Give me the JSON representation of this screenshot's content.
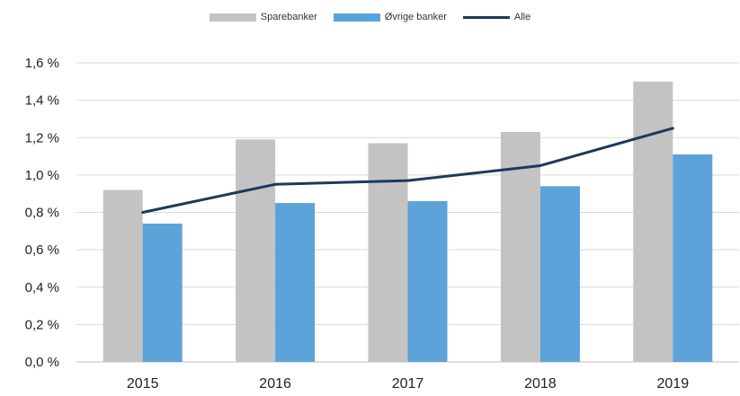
{
  "chart_data": {
    "type": "bar",
    "categories": [
      "2015",
      "2016",
      "2017",
      "2018",
      "2019"
    ],
    "series": [
      {
        "name": "Sparebanker",
        "kind": "bar",
        "color": "#c3c3c3",
        "values": [
          0.92,
          1.19,
          1.17,
          1.23,
          1.5
        ]
      },
      {
        "name": "Øvrige banker",
        "kind": "bar",
        "color": "#5ba3d9",
        "values": [
          0.74,
          0.85,
          0.86,
          0.94,
          1.11
        ]
      },
      {
        "name": "Alle",
        "kind": "line",
        "color": "#1b3a5a",
        "values": [
          0.8,
          0.95,
          0.97,
          1.05,
          1.25
        ]
      }
    ],
    "ylim": [
      0,
      1.6
    ],
    "yticks": [
      "0,0 %",
      "0,2 %",
      "0,4 %",
      "0,6 %",
      "0,8 %",
      "1,0 %",
      "1,2 %",
      "1,4 %",
      "1,6 %"
    ],
    "ytick_values": [
      0,
      0.2,
      0.4,
      0.6,
      0.8,
      1.0,
      1.2,
      1.4,
      1.6
    ],
    "grid": true,
    "legend_position": "top-center",
    "title": "",
    "xlabel": "",
    "ylabel": ""
  },
  "legend": {
    "items": [
      {
        "label": "Sparebanker",
        "type": "bar",
        "color": "#c3c3c3"
      },
      {
        "label": "Øvrige banker",
        "type": "bar",
        "color": "#5ba3d9"
      },
      {
        "label": "Alle",
        "type": "line",
        "color": "#1b3a5a"
      }
    ]
  }
}
